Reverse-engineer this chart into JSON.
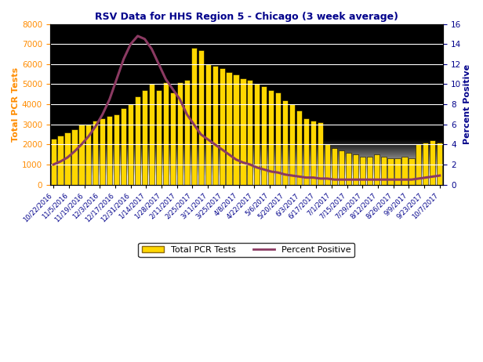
{
  "title": "RSV Data for HHS Region 5 - Chicago (3 week average)",
  "ylabel_left": "Total PCR Tests",
  "ylabel_right": "Percent Positive",
  "ylim_left": [
    0,
    8000
  ],
  "ylim_right": [
    0,
    16
  ],
  "yticks_left": [
    0,
    1000,
    2000,
    3000,
    4000,
    5000,
    6000,
    7000,
    8000
  ],
  "yticks_right": [
    0,
    2,
    4,
    6,
    8,
    10,
    12,
    14,
    16
  ],
  "bar_color": "#FFD700",
  "bar_edge_color": "#000000",
  "line_color": "#8B3A62",
  "dates": [
    "10/22/2016",
    "11/5/2016",
    "11/19/2016",
    "12/3/2016",
    "12/17/2016",
    "12/31/2016",
    "1/14/2017",
    "1/28/2017",
    "2/11/2017",
    "2/25/2017",
    "3/11/2017",
    "3/25/2017",
    "4/8/2017",
    "4/22/2017",
    "5/6/2017",
    "5/20/2017",
    "6/3/2017",
    "6/17/2017",
    "7/1/2017",
    "7/15/2017",
    "7/29/2017",
    "8/12/2017",
    "8/26/2017",
    "9/9/2017",
    "9/23/2017",
    "10/7/2017"
  ],
  "total_pcr": [
    2300,
    2450,
    2600,
    2750,
    3000,
    3000,
    3200,
    3300,
    3400,
    3500,
    3800,
    4000,
    4400,
    4700,
    5000,
    4700,
    5100,
    4600,
    5100,
    5200,
    6800,
    6700,
    6000,
    5900,
    5800,
    5600,
    5500,
    5300,
    5200,
    5000,
    4900,
    4700,
    4600,
    4200,
    4000,
    3700,
    3300,
    3200,
    3100,
    2000,
    1800,
    1700,
    1600,
    1500,
    1400,
    1400,
    1500,
    1400,
    1300,
    1300,
    1400,
    1300,
    2000,
    2100,
    2200,
    2100
  ],
  "pct_positive": [
    2.0,
    2.3,
    2.7,
    3.3,
    4.0,
    4.8,
    5.8,
    7.0,
    8.5,
    10.5,
    12.5,
    14.0,
    14.8,
    14.5,
    13.5,
    12.0,
    10.5,
    9.5,
    8.5,
    7.0,
    6.0,
    5.0,
    4.5,
    4.0,
    3.5,
    3.0,
    2.5,
    2.2,
    2.0,
    1.7,
    1.5,
    1.3,
    1.2,
    1.0,
    0.9,
    0.8,
    0.7,
    0.7,
    0.6,
    0.6,
    0.5,
    0.5,
    0.5,
    0.5,
    0.5,
    0.5,
    0.5,
    0.5,
    0.5,
    0.5,
    0.5,
    0.5,
    0.6,
    0.7,
    0.8,
    0.9
  ],
  "xtick_dates": [
    "10/22/2016",
    "11/5/2016",
    "11/19/2016",
    "12/3/2016",
    "12/17/2016",
    "12/31/2016",
    "1/14/2017",
    "1/28/2017",
    "2/11/2017",
    "2/25/2017",
    "3/11/2017",
    "3/25/2017",
    "4/8/2017",
    "4/22/2017",
    "5/6/2017",
    "5/20/2017",
    "6/3/2017",
    "6/17/2017",
    "7/1/2017",
    "7/15/2017",
    "7/29/2017",
    "8/12/2017",
    "8/26/2017",
    "9/9/2017",
    "9/23/2017",
    "10/7/2017"
  ],
  "title_color": "#00008B",
  "axis_label_color_left": "#FF8C00",
  "axis_label_color_right": "#00008B",
  "tick_color_left": "#FF8C00",
  "tick_color_right": "#00008B",
  "bg_top": "#C8C8C8",
  "bg_bottom": "#E8E8E8"
}
